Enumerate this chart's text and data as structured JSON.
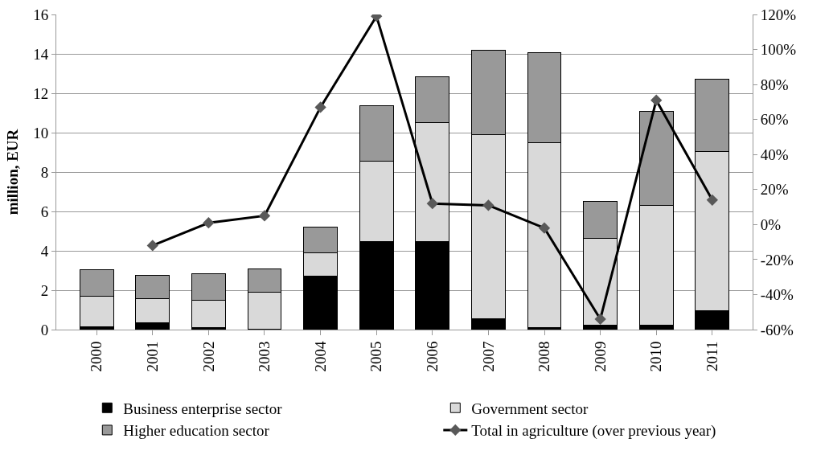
{
  "chart_data": {
    "type": "bar",
    "stacked": true,
    "ylabel": "million, EUR",
    "categories": [
      "2000",
      "2001",
      "2002",
      "2003",
      "2004",
      "2005",
      "2006",
      "2007",
      "2008",
      "2009",
      "2010",
      "2011"
    ],
    "series": [
      {
        "name": "Business enterprise sector",
        "color": "#000000",
        "values": [
          0.16,
          0.33,
          0.1,
          0.04,
          2.7,
          4.47,
          4.47,
          0.56,
          0.11,
          0.22,
          0.22,
          0.96
        ]
      },
      {
        "name": "Government sector",
        "color": "#d9d9d9",
        "values": [
          1.55,
          1.25,
          1.39,
          1.85,
          1.2,
          4.09,
          6.03,
          9.34,
          9.39,
          4.4,
          6.08,
          8.07
        ]
      },
      {
        "name": "Higher education sector",
        "color": "#999999",
        "values": [
          1.32,
          1.19,
          1.33,
          1.18,
          1.29,
          2.82,
          2.32,
          4.3,
          4.57,
          1.88,
          4.78,
          3.7
        ]
      },
      {
        "name": "Total in agriculture (over previous year)",
        "type": "line",
        "axis": "y2",
        "color": "#000000",
        "marker": "diamond",
        "values": [
          null,
          -12,
          1,
          5,
          67,
          119,
          12,
          11,
          -2,
          -54,
          71,
          14
        ]
      }
    ],
    "ylim": [
      0,
      16
    ],
    "yticks": [
      0,
      2,
      4,
      6,
      8,
      10,
      12,
      14,
      16
    ],
    "y2lim": [
      -60,
      120
    ],
    "y2ticks": [
      {
        "value": -60,
        "label": "-60%"
      },
      {
        "value": -40,
        "label": "-40%"
      },
      {
        "value": -20,
        "label": "-20%"
      },
      {
        "value": 0,
        "label": "0%"
      },
      {
        "value": 20,
        "label": "20%"
      },
      {
        "value": 40,
        "label": "40%"
      },
      {
        "value": 60,
        "label": "60%"
      },
      {
        "value": 80,
        "label": "80%"
      },
      {
        "value": 100,
        "label": "100%"
      },
      {
        "value": 120,
        "label": "120%"
      }
    ],
    "grid": "y",
    "legend": "bottom"
  }
}
